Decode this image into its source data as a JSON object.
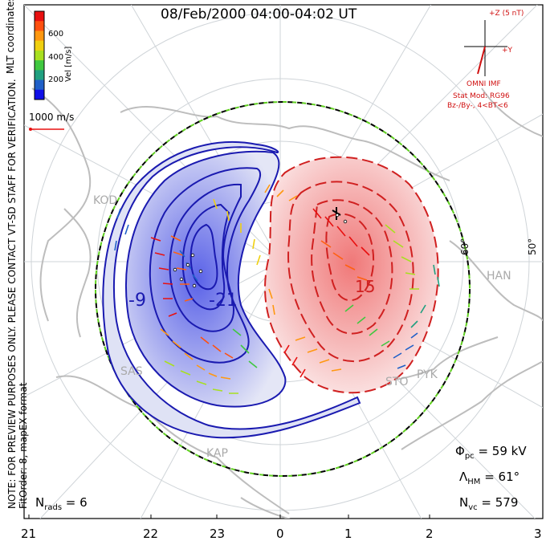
{
  "title": "08/Feb/2000 04:00-04:02 UT",
  "colorbar": {
    "label": "Vel [m/s]",
    "ticks": [
      "600",
      "400",
      "200"
    ],
    "colors": [
      "#e81010",
      "#ff5010",
      "#ff9810",
      "#f0d010",
      "#a8e020",
      "#40c840",
      "#20a080",
      "#2060c8",
      "#1010e8"
    ]
  },
  "coordinate_label": "MLT coordinates",
  "vector_scale": "1000 m/s",
  "imf": {
    "bz_label": "+Z (5 nT)",
    "by_label": "+Y",
    "source": "OMNI IMF",
    "stat_mod": "Stat Mod: RG96",
    "condition": "Bz-/By-, 4<BT<6"
  },
  "latitude_labels": [
    "60°",
    "50°"
  ],
  "contour_labels": [
    "-9",
    "-21",
    "15"
  ],
  "stations": [
    "KOD",
    "HAN",
    "SAS",
    "KAP",
    "STO",
    "PYK"
  ],
  "note": "NOTE: FOR PREVIEW PURPOSES ONLY. PLEASE CONTACT VT-SD STAFF FOR VERIFICATION.",
  "fit": "FitOrder: 8, mapEX format",
  "stats": {
    "phi_pc": "59 kV",
    "lambda_hm": "61°",
    "n_vc": "579",
    "n_rads": "6"
  },
  "mlt_ticks": [
    "21",
    "22",
    "23",
    "0",
    "1",
    "2",
    "3"
  ]
}
